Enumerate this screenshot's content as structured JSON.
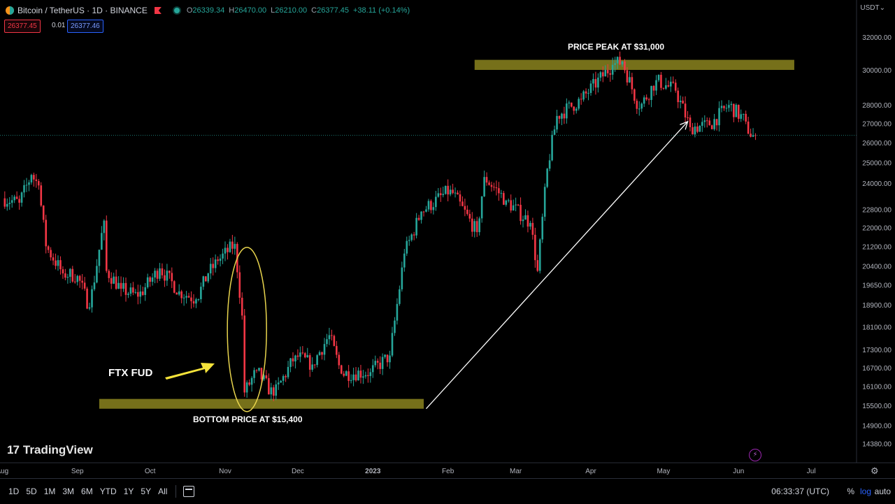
{
  "header": {
    "symbol": "Bitcoin / TetherUS · 1D · BINANCE",
    "ohlc": {
      "o": "26339.34",
      "h": "26470.00",
      "l": "26210.00",
      "c": "26377.45",
      "chg": "+38.11 (+0.14%)"
    },
    "sell_price": "26377.45",
    "spread": "0.01",
    "buy_price": "26377.46",
    "currency": "USDT"
  },
  "logo_text": "TradingView",
  "annotations": {
    "peak": "PRICE PEAK  AT $31,000",
    "bottom": "BOTTOM PRICE AT $15,400",
    "ftx": "FTX FUD"
  },
  "bottom_bar": {
    "timeframes": [
      "1D",
      "5D",
      "1M",
      "3M",
      "6M",
      "YTD",
      "1Y",
      "5Y",
      "All"
    ],
    "clock": "06:33:37 (UTC)",
    "percent": "%",
    "log": "log",
    "auto": "auto"
  },
  "colors": {
    "up": "#26a69a",
    "down": "#f23645",
    "zone": "#807a1c",
    "ellipse": "#e8d44d",
    "bg": "#000000"
  },
  "chart_data": {
    "type": "candlestick",
    "title": "Bitcoin / TetherUS · 1D · BINANCE",
    "scale": "log",
    "current_price": 26377.45,
    "y_ticks": [
      14380,
      14900,
      15500,
      16100,
      16700,
      17300,
      18100,
      18900,
      19650,
      20400,
      21200,
      22000,
      22800,
      24000,
      25000,
      26000,
      27000,
      28000,
      30000,
      32000
    ],
    "y_tick_labels": [
      "14380.00",
      "14900.00",
      "15500.00",
      "16100.00",
      "16700.00",
      "17300.00",
      "18100.00",
      "18900.00",
      "19650.00",
      "20400.00",
      "21200.00",
      "22000.00",
      "22800.00",
      "24000.00",
      "25000.00",
      "26000.00",
      "27000.00",
      "28000.00",
      "30000.00",
      "32000.00"
    ],
    "x_labels": [
      "Aug",
      "Sep",
      "Oct",
      "Nov",
      "Dec",
      "2023",
      "Feb",
      "Mar",
      "Apr",
      "May",
      "Jun",
      "Jul"
    ],
    "x_range": [
      "2022-08",
      "2023-07"
    ],
    "zones": [
      {
        "label": "PRICE PEAK  AT $31,000",
        "from": "2023-02-12",
        "to": "2023-06-24",
        "low": 30000,
        "high": 30600
      },
      {
        "label": "BOTTOM PRICE AT $15,400",
        "from": "2022-09-10",
        "to": "2023-01-22",
        "low": 15400,
        "high": 15700
      }
    ],
    "close_series": [
      {
        "d": "2022-08-01",
        "c": 23300
      },
      {
        "d": "2022-08-08",
        "c": 23100
      },
      {
        "d": "2022-08-13",
        "c": 24400
      },
      {
        "d": "2022-08-16",
        "c": 23900
      },
      {
        "d": "2022-08-19",
        "c": 21200
      },
      {
        "d": "2022-08-26",
        "c": 20100
      },
      {
        "d": "2022-09-01",
        "c": 20000
      },
      {
        "d": "2022-09-06",
        "c": 18800
      },
      {
        "d": "2022-09-12",
        "c": 22300
      },
      {
        "d": "2022-09-13",
        "c": 20200
      },
      {
        "d": "2022-09-19",
        "c": 19500
      },
      {
        "d": "2022-09-26",
        "c": 19200
      },
      {
        "d": "2022-10-05",
        "c": 20300
      },
      {
        "d": "2022-10-13",
        "c": 19400
      },
      {
        "d": "2022-10-20",
        "c": 19100
      },
      {
        "d": "2022-10-25",
        "c": 20100
      },
      {
        "d": "2022-10-29",
        "c": 20600
      },
      {
        "d": "2022-11-05",
        "c": 21300
      },
      {
        "d": "2022-11-08",
        "c": 18500
      },
      {
        "d": "2022-11-09",
        "c": 15900
      },
      {
        "d": "2022-11-14",
        "c": 16600
      },
      {
        "d": "2022-11-21",
        "c": 15800
      },
      {
        "d": "2022-11-30",
        "c": 17100
      },
      {
        "d": "2022-12-07",
        "c": 16800
      },
      {
        "d": "2022-12-14",
        "c": 17800
      },
      {
        "d": "2022-12-19",
        "c": 16500
      },
      {
        "d": "2022-12-31",
        "c": 16550
      },
      {
        "d": "2023-01-08",
        "c": 17100
      },
      {
        "d": "2023-01-14",
        "c": 20900
      },
      {
        "d": "2023-01-21",
        "c": 22700
      },
      {
        "d": "2023-02-02",
        "c": 23700
      },
      {
        "d": "2023-02-13",
        "c": 21800
      },
      {
        "d": "2023-02-16",
        "c": 24300
      },
      {
        "d": "2023-02-25",
        "c": 23200
      },
      {
        "d": "2023-03-07",
        "c": 22200
      },
      {
        "d": "2023-03-10",
        "c": 20200
      },
      {
        "d": "2023-03-14",
        "c": 24700
      },
      {
        "d": "2023-03-18",
        "c": 27400
      },
      {
        "d": "2023-03-28",
        "c": 28300
      },
      {
        "d": "2023-04-10",
        "c": 30300
      },
      {
        "d": "2023-04-14",
        "c": 30500
      },
      {
        "d": "2023-04-21",
        "c": 27800
      },
      {
        "d": "2023-04-28",
        "c": 29400
      },
      {
        "d": "2023-05-06",
        "c": 28800
      },
      {
        "d": "2023-05-12",
        "c": 26800
      },
      {
        "d": "2023-05-20",
        "c": 26900
      },
      {
        "d": "2023-05-28",
        "c": 28000
      },
      {
        "d": "2023-06-04",
        "c": 27100
      },
      {
        "d": "2023-06-06",
        "c": 26300
      },
      {
        "d": "2023-06-08",
        "c": 26377
      }
    ]
  }
}
